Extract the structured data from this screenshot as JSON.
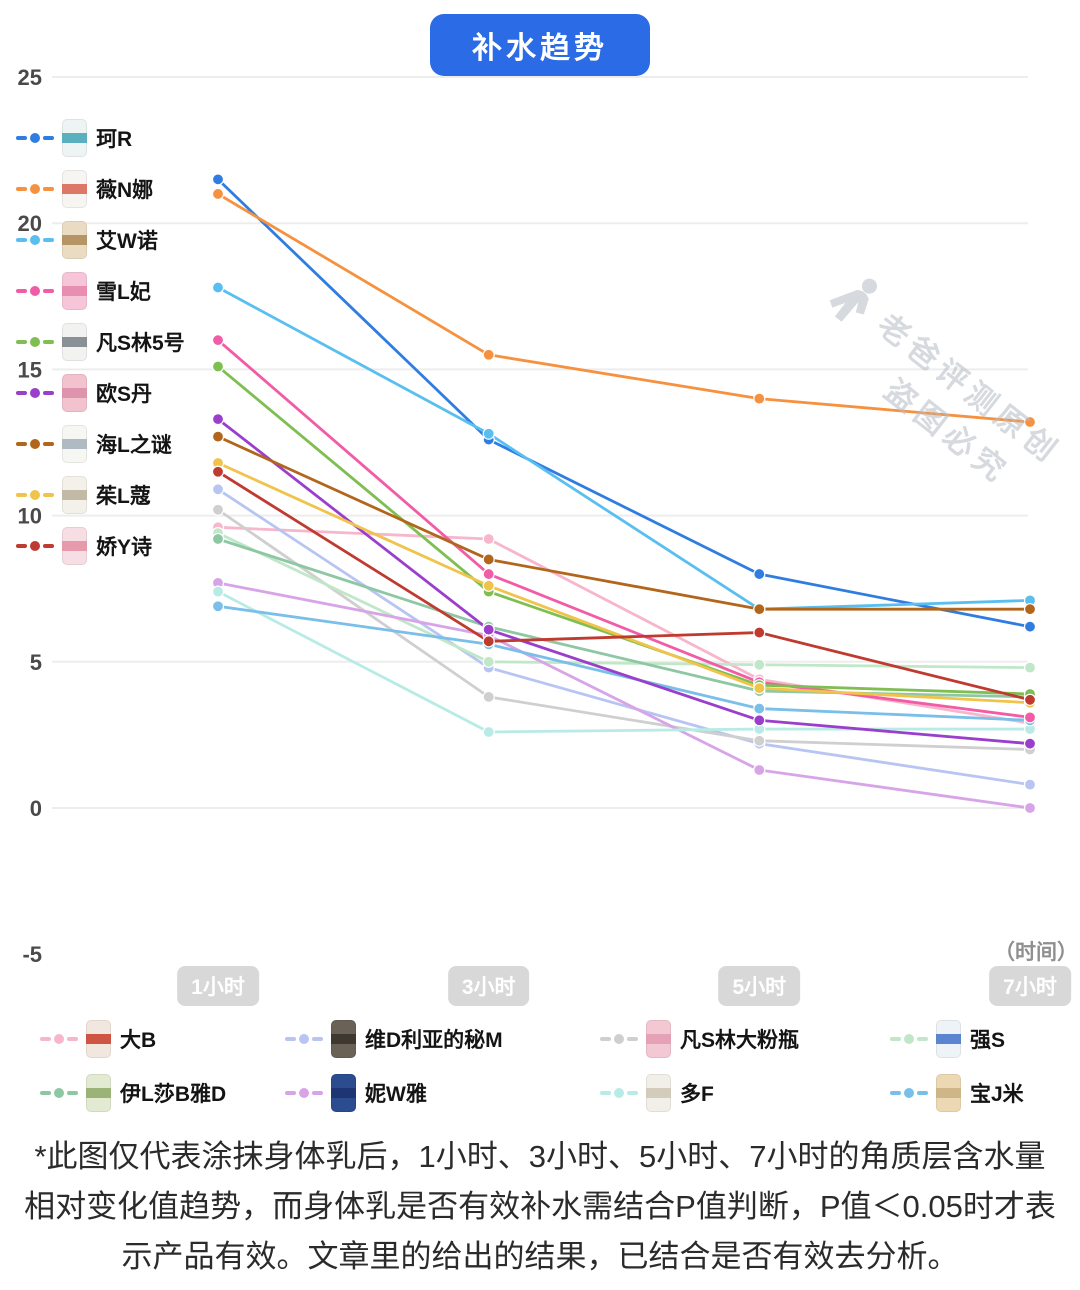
{
  "title": "补水趋势",
  "watermark": {
    "line1": "老爸评测原创",
    "line2": "盗图必究"
  },
  "chart_data": {
    "type": "line",
    "title": "补水趋势",
    "categories": [
      "1小时",
      "3小时",
      "5小时",
      "7小时"
    ],
    "y_ticks": [
      25,
      20,
      15,
      10,
      5,
      0,
      -5
    ],
    "ylim": [
      -5,
      25
    ],
    "xlabel": "（时间）",
    "ylabel": "",
    "grid": true,
    "legend_position": "left-and-bottom",
    "series": [
      {
        "name": "珂R",
        "color": "#2f7de1",
        "light": false,
        "thumb": {
          "bg": "#eef4f4",
          "accent": "#49a8b8"
        },
        "values": [
          21.5,
          12.6,
          8.0,
          6.2
        ]
      },
      {
        "name": "薇N娜",
        "color": "#f5913f",
        "light": false,
        "thumb": {
          "bg": "#f7f5f2",
          "accent": "#d96a5a"
        },
        "values": [
          21.0,
          15.5,
          14.0,
          13.2
        ]
      },
      {
        "name": "艾W诺",
        "color": "#59bff0",
        "light": false,
        "thumb": {
          "bg": "#e9dcc2",
          "accent": "#b08d5a"
        },
        "values": [
          17.8,
          12.8,
          6.8,
          7.1
        ]
      },
      {
        "name": "雪L妃",
        "color": "#f25ba6",
        "light": false,
        "thumb": {
          "bg": "#f6c6d8",
          "accent": "#e687ad"
        },
        "values": [
          16.0,
          8.0,
          4.3,
          3.1
        ]
      },
      {
        "name": "凡S林5号",
        "color": "#7fbf52",
        "light": false,
        "thumb": {
          "bg": "#f2f2f0",
          "accent": "#7d858c"
        },
        "values": [
          15.1,
          7.4,
          4.2,
          3.9
        ]
      },
      {
        "name": "欧S丹",
        "color": "#9a3ecb",
        "light": false,
        "thumb": {
          "bg": "#f3c2cf",
          "accent": "#dc8fa9"
        },
        "values": [
          13.3,
          6.1,
          3.0,
          2.2
        ]
      },
      {
        "name": "海L之谜",
        "color": "#b2661c",
        "light": false,
        "thumb": {
          "bg": "#f6f6f3",
          "accent": "#a8b4bd"
        },
        "values": [
          12.7,
          8.5,
          6.8,
          6.8
        ]
      },
      {
        "name": "茱L蔻",
        "color": "#f0c34a",
        "light": false,
        "thumb": {
          "bg": "#f4f1ea",
          "accent": "#beb49e"
        },
        "values": [
          11.8,
          7.6,
          4.1,
          3.6
        ]
      },
      {
        "name": "娇Y诗",
        "color": "#bf3a2f",
        "light": false,
        "thumb": {
          "bg": "#f7dee4",
          "accent": "#e294a4"
        },
        "values": [
          11.5,
          5.7,
          6.0,
          3.7
        ]
      },
      {
        "name": "大B",
        "color": "#f7b6cb",
        "light": true,
        "thumb": {
          "bg": "#f2e7df",
          "accent": "#cc4433"
        },
        "values": [
          9.6,
          9.2,
          4.4,
          2.9
        ]
      },
      {
        "name": "维D利亚的秘M",
        "color": "#b8c5f2",
        "light": true,
        "thumb": {
          "bg": "#6a6157",
          "accent": "#3a342c"
        },
        "values": [
          10.9,
          4.8,
          2.2,
          0.8
        ]
      },
      {
        "name": "凡S林大粉瓶",
        "color": "#cfcfcf",
        "light": true,
        "thumb": {
          "bg": "#f3c8d2",
          "accent": "#e39db2"
        },
        "values": [
          10.2,
          3.8,
          2.3,
          2.0
        ]
      },
      {
        "name": "强S",
        "color": "#bfe7c8",
        "light": true,
        "thumb": {
          "bg": "#eef3f8",
          "accent": "#4a79c9"
        },
        "values": [
          9.4,
          5.0,
          4.9,
          4.8
        ]
      },
      {
        "name": "伊L莎B雅D",
        "color": "#8ec7a4",
        "light": true,
        "thumb": {
          "bg": "#e2ead2",
          "accent": "#93ad6d"
        },
        "values": [
          9.2,
          6.2,
          4.0,
          3.8
        ]
      },
      {
        "name": "妮W雅",
        "color": "#d8a4e8",
        "light": true,
        "thumb": {
          "bg": "#2c4c90",
          "accent": "#1c3470"
        },
        "values": [
          7.7,
          5.9,
          1.3,
          0.0
        ]
      },
      {
        "name": "多F",
        "color": "#b9ebe6",
        "light": true,
        "thumb": {
          "bg": "#f2efe8",
          "accent": "#cfc7b6"
        },
        "values": [
          7.4,
          2.6,
          2.7,
          2.7
        ]
      },
      {
        "name": "宝J米",
        "color": "#79bfe9",
        "light": true,
        "thumb": {
          "bg": "#ecd9b4",
          "accent": "#cbb183"
        },
        "values": [
          6.9,
          5.6,
          3.4,
          3.0
        ]
      }
    ]
  },
  "legend_left_indices": [
    0,
    1,
    2,
    3,
    4,
    5,
    6,
    7,
    8
  ],
  "legend_bottom_rows": [
    [
      9,
      10,
      11,
      12
    ],
    [
      13,
      14,
      15,
      16
    ]
  ],
  "footer": {
    "line1": "*此图仅代表涂抹身体乳后，1小时、3小时、5小时、7小时的角质层含水量",
    "line2": "相对变化值趋势，而身体乳是否有效补水需结合P值判断，P值＜0.05时才表",
    "line3": "示产品有效。文章里的给出的结果，已结合是否有效去分析。"
  }
}
